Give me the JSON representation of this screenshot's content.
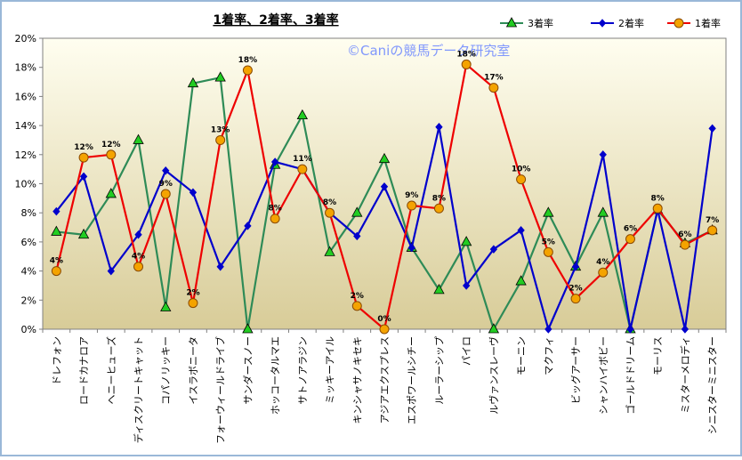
{
  "chart_data": {
    "type": "line",
    "title": "1着率、2着率、3着率",
    "watermark": "©Caniの競馬データ研究室",
    "xlabel": "",
    "ylabel": "",
    "ylim": [
      0,
      20
    ],
    "y_ticks": [
      "0%",
      "2%",
      "4%",
      "6%",
      "8%",
      "10%",
      "12%",
      "14%",
      "16%",
      "18%",
      "20%"
    ],
    "grid": false,
    "legend_position": "top-right",
    "categories": [
      "ドレフォン",
      "ロードカナロア",
      "ヘニーヒューズ",
      "ディスクリートキャット",
      "コパノリッキー",
      "イスラボニータ",
      "フォーウィールドライブ",
      "サンダースノー",
      "ホッコータルマエ",
      "サトノアラジン",
      "ミッキーアイル",
      "キンシャサノキセキ",
      "アジアエクスプレス",
      "エスポワールシチー",
      "ルーラーシップ",
      "パイロ",
      "ルヴァンスレーヴ",
      "モーニン",
      "マクフィ",
      "ビッグアーサー",
      "シャンハイボビー",
      "ゴールドドリーム",
      "モーリス",
      "ミスターメロディ",
      "シニスターミニスター"
    ],
    "series": [
      {
        "name": "3着率",
        "color": "#2e8b57",
        "marker": "triangle",
        "marker_fill": "#22cc22",
        "values": [
          6.7,
          6.5,
          9.3,
          13.0,
          1.5,
          16.9,
          17.3,
          0.0,
          11.3,
          14.7,
          5.3,
          8.0,
          11.7,
          5.6,
          2.7,
          6.0,
          0.0,
          3.3,
          8.0,
          4.3,
          8.0,
          0.0,
          8.2,
          5.9,
          6.8
        ]
      },
      {
        "name": "2着率",
        "color": "#0000cc",
        "marker": "diamond",
        "marker_fill": "#0000cc",
        "values": [
          8.1,
          10.5,
          4.0,
          6.5,
          10.9,
          9.4,
          4.3,
          7.1,
          11.5,
          11.0,
          8.0,
          6.4,
          9.8,
          5.6,
          13.9,
          3.0,
          5.5,
          6.8,
          0.0,
          4.3,
          12.0,
          0.0,
          8.2,
          0.0,
          13.8
        ]
      },
      {
        "name": "1着率",
        "color": "#ee0000",
        "marker": "circle",
        "marker_fill": "#f4a300",
        "values": [
          4.0,
          11.8,
          12.0,
          4.3,
          9.3,
          1.8,
          13.0,
          17.8,
          7.6,
          11.0,
          8.0,
          1.6,
          0.0,
          8.5,
          8.3,
          18.2,
          16.6,
          10.3,
          5.3,
          2.1,
          3.9,
          6.2,
          8.3,
          5.8,
          6.8
        ]
      }
    ],
    "data_labels": [
      "4%",
      "12%",
      "12%",
      "4%",
      "9%",
      "2%",
      "13%",
      "18%",
      "8%",
      "11%",
      "8%",
      "2%",
      "0%",
      "9%",
      "8%",
      "18%",
      "17%",
      "10%",
      "5%",
      "2%",
      "4%",
      "6%",
      "8%",
      "6%",
      "7%"
    ],
    "background_gradient": [
      "#fffef0",
      "#d8cc98"
    ],
    "frame_color": "#9ab8d8"
  }
}
